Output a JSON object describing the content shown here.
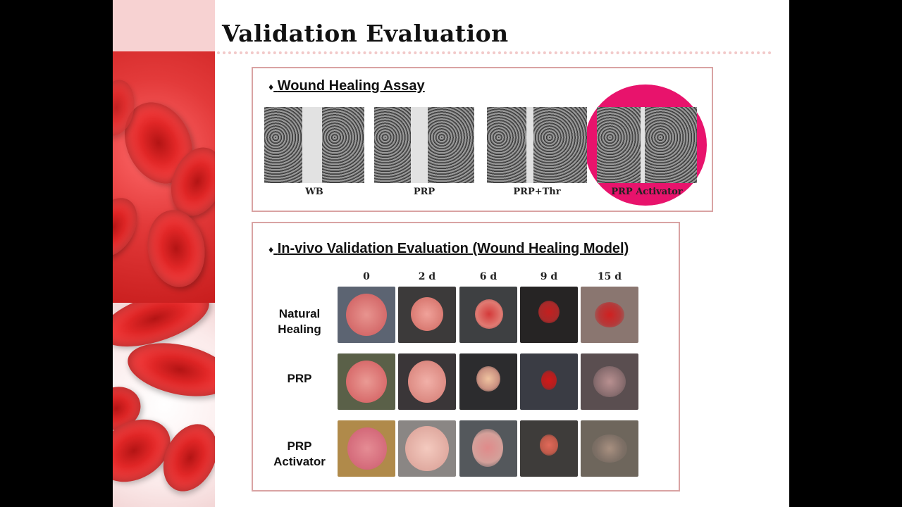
{
  "slide": {
    "title": "Validation Evaluation"
  },
  "assay_panel": {
    "heading": "Wound Healing Assay",
    "bullet": "♦",
    "images": [
      {
        "label": "WB"
      },
      {
        "label": "PRP"
      },
      {
        "label": "PRP+Thr"
      },
      {
        "label": "PRP Activator",
        "highlighted": true
      }
    ],
    "highlight_color": "#e8136c"
  },
  "invivo_panel": {
    "heading": "In-vivo Validation Evaluation (Wound Healing Model)",
    "bullet": "♦",
    "columns": [
      "0",
      "2 d",
      "6 d",
      "9 d",
      "15 d"
    ],
    "rows": [
      {
        "label_line1": "Natural",
        "label_line2": "Healing"
      },
      {
        "label_line1": "PRP",
        "label_line2": ""
      },
      {
        "label_line1": "PRP",
        "label_line2": "Activator"
      }
    ]
  }
}
